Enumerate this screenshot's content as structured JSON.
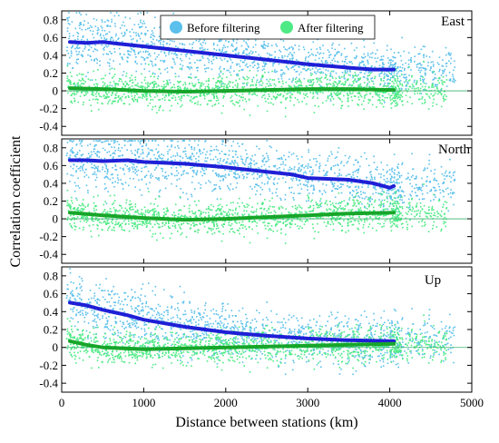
{
  "chart_data": {
    "type": "scatter",
    "xlabel": "Distance between stations (km)",
    "ylabel": "Correlation coefficient",
    "xlim": [
      0,
      5000
    ],
    "ylim": [
      -0.5,
      0.9
    ],
    "xticks": [
      0,
      1000,
      2000,
      3000,
      4000,
      5000
    ],
    "yticks": [
      -0.4,
      -0.2,
      0,
      0.2,
      0.4,
      0.6,
      0.8
    ],
    "legend": {
      "placement": "top-center of first panel",
      "entries": [
        {
          "name": "Before filtering",
          "color": "#5bc0eb"
        },
        {
          "name": "After filtering",
          "color": "#4eea85"
        }
      ]
    },
    "colors": {
      "before_scatter": "#5bc0eb",
      "after_scatter": "#4eea85",
      "before_mean": "#1f1fd6",
      "after_mean": "#17a52a",
      "zero_line": "#3cb371"
    },
    "panels": [
      {
        "label": "East",
        "series": [
          {
            "name": "Before filtering",
            "mean_x": [
              100,
              300,
              500,
              700,
              1000,
              1500,
              2000,
              2500,
              3000,
              3500,
              3800,
              4050
            ],
            "mean_y": [
              0.55,
              0.54,
              0.55,
              0.53,
              0.5,
              0.45,
              0.4,
              0.35,
              0.3,
              0.26,
              0.24,
              0.24
            ]
          },
          {
            "name": "After filtering",
            "mean_x": [
              100,
              500,
              1000,
              1500,
              2000,
              2500,
              3000,
              3500,
              4050
            ],
            "mean_y": [
              0.03,
              0.02,
              0.0,
              -0.01,
              0.0,
              0.01,
              0.02,
              0.02,
              0.01
            ]
          }
        ]
      },
      {
        "label": "North",
        "series": [
          {
            "name": "Before filtering",
            "mean_x": [
              100,
              300,
              500,
              800,
              1000,
              1500,
              2000,
              2500,
              2800,
              3000,
              3500,
              3800,
              4000,
              4050
            ],
            "mean_y": [
              0.66,
              0.66,
              0.65,
              0.66,
              0.64,
              0.62,
              0.58,
              0.53,
              0.5,
              0.46,
              0.44,
              0.4,
              0.35,
              0.37
            ]
          },
          {
            "name": "After filtering",
            "mean_x": [
              100,
              500,
              1000,
              1500,
              2000,
              2500,
              3000,
              3500,
              4050
            ],
            "mean_y": [
              0.07,
              0.04,
              0.01,
              -0.01,
              0.0,
              0.02,
              0.04,
              0.06,
              0.07
            ]
          }
        ]
      },
      {
        "label": "Up",
        "series": [
          {
            "name": "Before filtering",
            "mean_x": [
              100,
              300,
              500,
              800,
              1000,
              1500,
              2000,
              2500,
              3000,
              3500,
              4000,
              4050
            ],
            "mean_y": [
              0.5,
              0.47,
              0.42,
              0.36,
              0.31,
              0.23,
              0.17,
              0.13,
              0.1,
              0.08,
              0.07,
              0.07
            ]
          },
          {
            "name": "After filtering",
            "mean_x": [
              100,
              300,
              500,
              1000,
              1500,
              2000,
              2500,
              3000,
              3500,
              4050
            ],
            "mean_y": [
              0.07,
              0.03,
              0.0,
              -0.02,
              -0.01,
              0.0,
              0.01,
              0.02,
              0.03,
              0.04
            ]
          }
        ]
      }
    ]
  }
}
